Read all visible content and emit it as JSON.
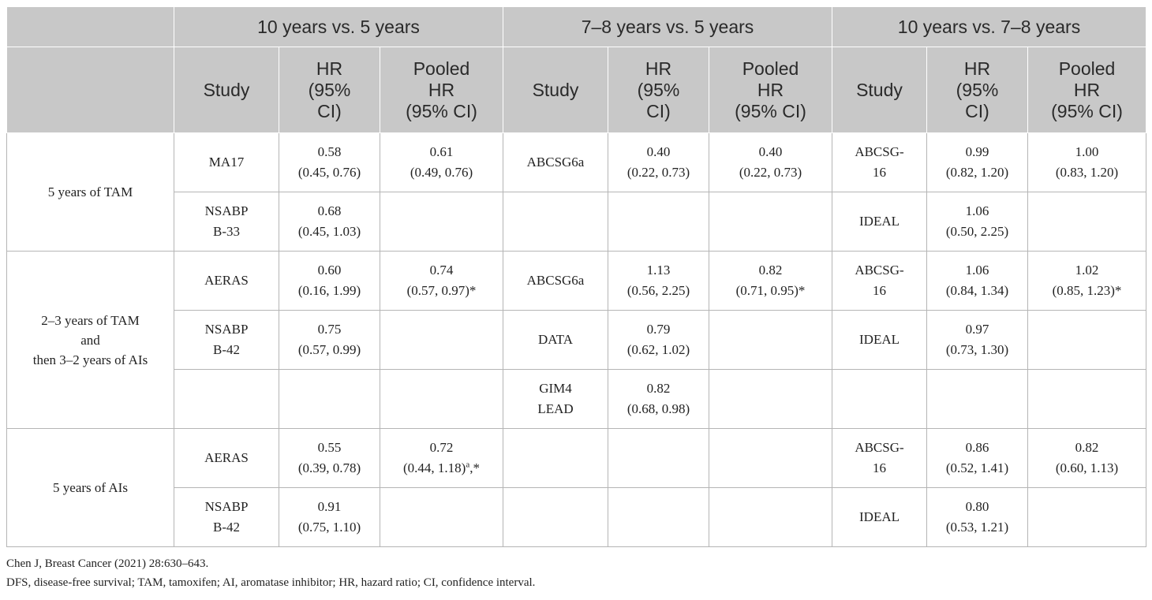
{
  "table": {
    "groups": [
      {
        "label": "10 years vs. 5 years"
      },
      {
        "label": "7–8 years vs. 5 years"
      },
      {
        "label": "10 years vs. 7–8 years"
      }
    ],
    "subheaders": {
      "study": "Study",
      "hr_l1": "HR",
      "hr_l2": "(95%",
      "hr_l3": "CI)",
      "pooled_l1": "Pooled",
      "pooled_l2": "HR",
      "pooled_l3": "(95% CI)"
    },
    "row_groups": [
      {
        "label_lines": [
          "5 years of TAM"
        ],
        "rows": [
          [
            {
              "study": [
                "MA17"
              ],
              "hr": [
                "0.58",
                "(0.45, 0.76)"
              ],
              "pooled": [
                "0.61",
                "(0.49, 0.76)"
              ]
            },
            {
              "study": [
                "ABCSG6a"
              ],
              "hr": [
                "0.40",
                "(0.22, 0.73)"
              ],
              "pooled": [
                "0.40",
                "(0.22, 0.73)"
              ]
            },
            {
              "study": [
                "ABCSG-",
                "16"
              ],
              "hr": [
                "0.99",
                "(0.82, 1.20)"
              ],
              "pooled": [
                "1.00",
                "(0.83, 1.20)"
              ]
            }
          ],
          [
            {
              "study": [
                "NSABP",
                "B-33"
              ],
              "hr": [
                "0.68",
                "(0.45, 1.03)"
              ],
              "pooled": []
            },
            {
              "study": [],
              "hr": [],
              "pooled": []
            },
            {
              "study": [
                "IDEAL"
              ],
              "hr": [
                "1.06",
                "(0.50, 2.25)"
              ],
              "pooled": []
            }
          ]
        ]
      },
      {
        "label_lines": [
          "2–3 years of TAM",
          "and",
          "then 3–2 years of AIs"
        ],
        "rows": [
          [
            {
              "study": [
                "AERAS"
              ],
              "hr": [
                "0.60",
                "(0.16, 1.99)"
              ],
              "pooled": [
                "0.74",
                "(0.57, 0.97)*"
              ]
            },
            {
              "study": [
                "ABCSG6a"
              ],
              "hr": [
                "1.13",
                "(0.56, 2.25)"
              ],
              "pooled": [
                "0.82",
                "(0.71, 0.95)*"
              ]
            },
            {
              "study": [
                "ABCSG-",
                "16"
              ],
              "hr": [
                "1.06",
                "(0.84, 1.34)"
              ],
              "pooled": [
                "1.02",
                "(0.85, 1.23)*"
              ]
            }
          ],
          [
            {
              "study": [
                "NSABP",
                "B-42"
              ],
              "hr": [
                "0.75",
                "(0.57, 0.99)"
              ],
              "pooled": []
            },
            {
              "study": [
                "DATA"
              ],
              "hr": [
                "0.79",
                "(0.62, 1.02)"
              ],
              "pooled": []
            },
            {
              "study": [
                "IDEAL"
              ],
              "hr": [
                "0.97",
                "(0.73, 1.30)"
              ],
              "pooled": []
            }
          ],
          [
            {
              "study": [],
              "hr": [],
              "pooled": []
            },
            {
              "study": [
                "GIM4",
                "LEAD"
              ],
              "hr": [
                "0.82",
                "(0.68, 0.98)"
              ],
              "pooled": []
            },
            {
              "study": [],
              "hr": [],
              "pooled": []
            }
          ]
        ]
      },
      {
        "label_lines": [
          "5 years of AIs"
        ],
        "rows": [
          [
            {
              "study": [
                "AERAS"
              ],
              "hr": [
                "0.55",
                "(0.39, 0.78)"
              ],
              "pooled": [
                "0.72",
                "(0.44, 1.18)"
              ],
              "pooled_sup": "a",
              "pooled_tail": ",*"
            },
            {
              "study": [],
              "hr": [],
              "pooled": []
            },
            {
              "study": [
                "ABCSG-",
                "16"
              ],
              "hr": [
                "0.86",
                "(0.52, 1.41)"
              ],
              "pooled": [
                "0.82",
                "(0.60, 1.13)"
              ]
            }
          ],
          [
            {
              "study": [
                "NSABP",
                "B-42"
              ],
              "hr": [
                "0.91",
                "(0.75, 1.10)"
              ],
              "pooled": []
            },
            {
              "study": [],
              "hr": [],
              "pooled": []
            },
            {
              "study": [
                "IDEAL"
              ],
              "hr": [
                "0.80",
                "(0.53, 1.21)"
              ],
              "pooled": []
            }
          ]
        ]
      }
    ]
  },
  "notes": {
    "source": "Chen J, Breast Cancer (2021) 28:630–643.",
    "abbreviations": "DFS, disease-free survival; TAM, tamoxifen; AI, aromatase inhibitor; HR, hazard ratio; CI, confidence interval."
  }
}
